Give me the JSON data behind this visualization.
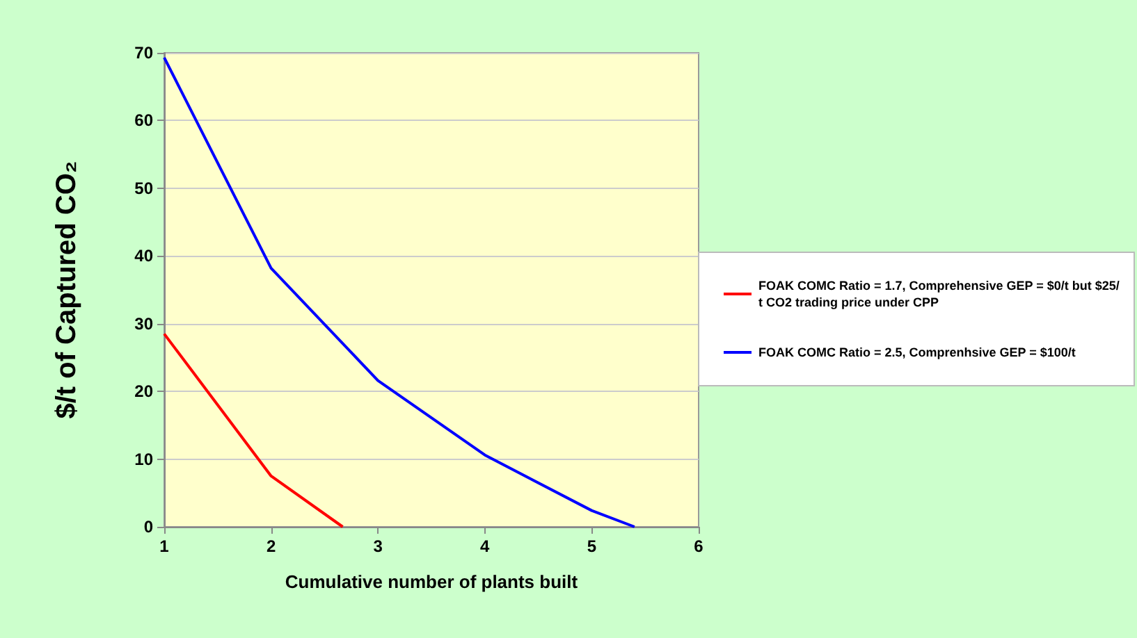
{
  "chart_data": {
    "type": "line",
    "xlabel": "Cumulative number of plants built",
    "ylabel": "$/t of Captured CO₂",
    "xlim": [
      1,
      6
    ],
    "xticks": [
      1,
      2,
      3,
      4,
      5,
      6
    ],
    "ylim": [
      0,
      70
    ],
    "yticks": [
      0,
      10,
      20,
      30,
      40,
      50,
      60,
      70
    ],
    "grid": "y",
    "legend": "right",
    "marker": "none",
    "line_style": "solid",
    "series": [
      {
        "name": "FOAK COMC Ratio = 1.7, Comprehensive GEP = $0/t but $25/t CO2 trading price under CPP",
        "color": "#ff0000",
        "x": [
          1,
          2,
          2.67
        ],
        "values": [
          28.5,
          7.5,
          0
        ]
      },
      {
        "name": "FOAK COMC Ratio = 2.5, Comprenhsive GEP = $100/t",
        "color": "#0000ff",
        "x": [
          1,
          2,
          3,
          4,
          5,
          5.4
        ],
        "values": [
          69.3,
          38.2,
          21.6,
          10.6,
          2.4,
          0
        ]
      }
    ]
  }
}
